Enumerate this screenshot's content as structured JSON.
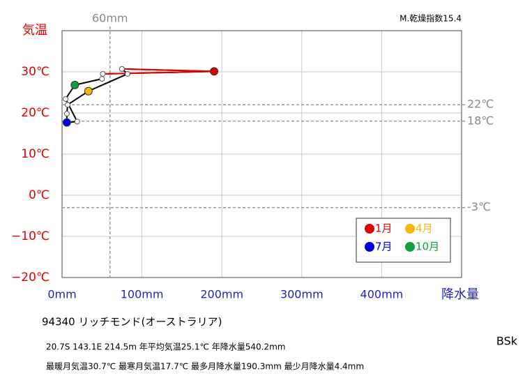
{
  "chart_data": {
    "type": "line",
    "title": "94340 リッチモンド(オーストラリア)",
    "info_line1": "20.7S 143.1E 214.5m 年平均気温25.1℃ 年降水量540.2mm",
    "info_line2": "最暖月気温30.7℃ 最寒月気温17.7℃ 最多月降水量190.3mm 最少月降水量4.4mm",
    "climate_class": "BSk",
    "dryness_index": "M.乾燥指数15.4",
    "xlabel": "降水量",
    "ylabel": "気温",
    "x": [
      190.3,
      75,
      82,
      33,
      7,
      6,
      6,
      19,
      4.4,
      16,
      50,
      51
    ],
    "values": [
      30.1,
      30.7,
      29.5,
      25.3,
      22.0,
      19.8,
      17.7,
      17.9,
      23.4,
      26.8,
      28.3,
      29.5
    ],
    "point_colors": [
      "#e00000",
      "#ffffff",
      "#ffffff",
      "#f5b800",
      "#ffffff",
      "#ffffff",
      "#0000e0",
      "#ffffff",
      "#ffffff",
      "#10a040",
      "#ffffff",
      "#ffffff"
    ],
    "line_color": "#000000",
    "legend": [
      {
        "name": "1月",
        "color": "#e00000"
      },
      {
        "name": "4月",
        "color": "#f5b800"
      },
      {
        "name": "7月",
        "color": "#0000e0"
      },
      {
        "name": "10月",
        "color": "#10a040"
      }
    ],
    "xlim": [
      0,
      500
    ],
    "ylim": [
      -20,
      40
    ],
    "xticks": [
      {
        "value": 0,
        "label": "0mm"
      },
      {
        "value": 100,
        "label": "100mm"
      },
      {
        "value": 200,
        "label": "200mm"
      },
      {
        "value": 300,
        "label": "300mm"
      },
      {
        "value": 400,
        "label": "400mm"
      },
      500
    ],
    "yticks": [
      {
        "value": -20,
        "label": "−20℃"
      },
      {
        "value": -10,
        "label": "−10℃"
      },
      {
        "value": 0,
        "label": "0℃"
      },
      {
        "value": 10,
        "label": "10℃"
      },
      {
        "value": 20,
        "label": "20℃"
      },
      {
        "value": 30,
        "label": "30℃"
      },
      40
    ],
    "hlines": [
      {
        "value": 22,
        "label": "22℃"
      },
      {
        "value": 18,
        "label": "18℃"
      },
      {
        "value": -3,
        "label": "-3℃"
      }
    ],
    "vlines": [
      {
        "value": 60,
        "label": "60mm"
      }
    ],
    "grid": true
  }
}
